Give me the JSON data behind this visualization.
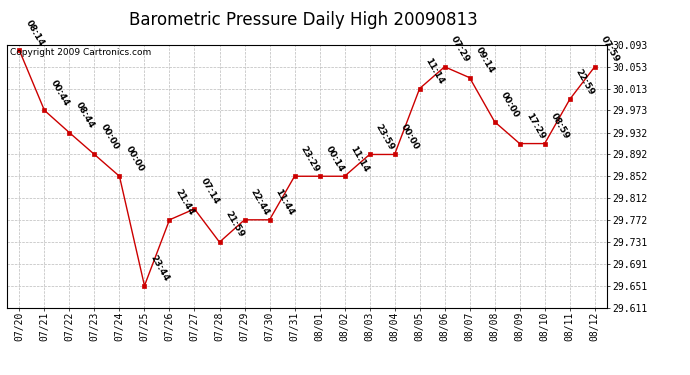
{
  "title": "Barometric Pressure Daily High 20090813",
  "copyright": "Copyright 2009 Cartronics.com",
  "x_labels": [
    "07/20",
    "07/21",
    "07/22",
    "07/23",
    "07/24",
    "07/25",
    "07/26",
    "07/27",
    "07/28",
    "07/29",
    "07/30",
    "07/31",
    "08/01",
    "08/02",
    "08/03",
    "08/04",
    "08/05",
    "08/06",
    "08/07",
    "08/08",
    "08/09",
    "08/10",
    "08/11",
    "08/12"
  ],
  "y_values": [
    30.083,
    29.973,
    29.932,
    29.892,
    29.852,
    29.651,
    29.772,
    29.792,
    29.731,
    29.772,
    29.772,
    29.852,
    29.852,
    29.852,
    29.892,
    29.892,
    30.013,
    30.053,
    30.033,
    29.952,
    29.912,
    29.912,
    29.993,
    30.053
  ],
  "point_labels": [
    "08:14",
    "00:44",
    "08:44",
    "00:00",
    "00:00",
    "23:44",
    "21:44",
    "07:14",
    "21:59",
    "22:44",
    "11:44",
    "23:29",
    "00:14",
    "11:14",
    "23:59",
    "00:00",
    "11:14",
    "07:29",
    "09:14",
    "00:00",
    "17:29",
    "08:59",
    "22:59",
    "07:59"
  ],
  "line_color": "#CC0000",
  "marker_color": "#CC0000",
  "bg_color": "#FFFFFF",
  "plot_bg_color": "#FFFFFF",
  "grid_color": "#BBBBBB",
  "text_color": "#000000",
  "y_min": 29.611,
  "y_max": 30.093,
  "y_ticks": [
    29.611,
    29.651,
    29.691,
    29.731,
    29.772,
    29.812,
    29.852,
    29.892,
    29.932,
    29.973,
    30.013,
    30.053,
    30.093
  ],
  "title_fontsize": 12,
  "tick_fontsize": 7,
  "annotation_fontsize": 6.5,
  "copyright_fontsize": 6.5
}
